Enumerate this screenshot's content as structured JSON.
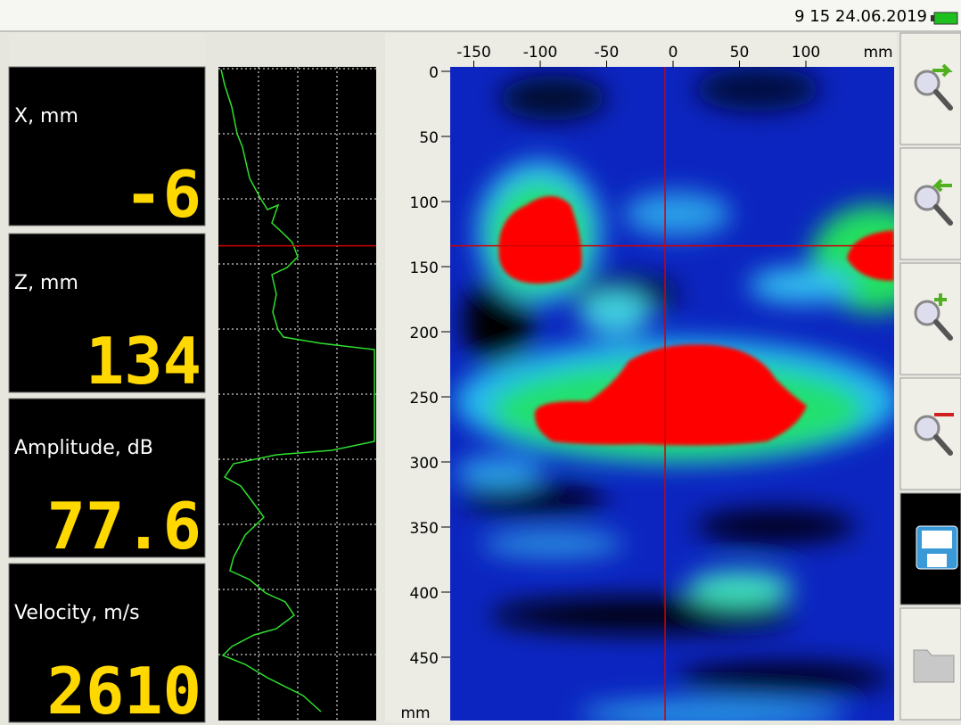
{
  "status_bar": {
    "time": "9 15 24.06.2019"
  },
  "readouts": [
    {
      "label": "X, mm",
      "value": -6
    },
    {
      "label": "Z, mm",
      "value": 134
    },
    {
      "label": "Amplitude, dB",
      "value": 77.6
    },
    {
      "label": "Velocity, m/s",
      "value": 2610
    }
  ],
  "scan": {
    "x_unit": "mm",
    "y_unit": "mm",
    "x_ticks": [
      -150,
      -100,
      -50,
      0,
      50,
      100
    ],
    "y_ticks": [
      0,
      50,
      100,
      150,
      200,
      250,
      300,
      350,
      400,
      450
    ]
  }
}
